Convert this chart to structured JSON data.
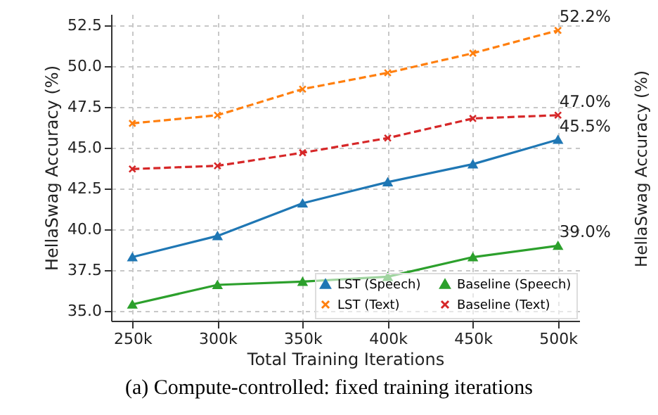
{
  "chart_data": {
    "type": "line",
    "xlabel": "Total Training Iterations",
    "ylabel": "HellaSwag Accuracy (%)",
    "categories": [
      "250k",
      "300k",
      "350k",
      "400k",
      "450k",
      "500k"
    ],
    "series": [
      {
        "name": "LST (Speech)",
        "color": "#1f77b4",
        "marker": "triangle",
        "line_style": "solid",
        "values": [
          38.3,
          39.6,
          41.6,
          42.9,
          44.0,
          45.5
        ],
        "value_labels": [
          null,
          null,
          null,
          null,
          null,
          "45.5%"
        ]
      },
      {
        "name": "LST (Text)",
        "color": "#ff7f0e",
        "marker": "cross",
        "line_style": "dashed",
        "values": [
          46.5,
          47.0,
          48.6,
          49.6,
          50.8,
          52.2
        ],
        "value_labels": [
          null,
          null,
          null,
          null,
          null,
          "52.2%"
        ]
      },
      {
        "name": "Baseline (Speech)",
        "color": "#2ca02c",
        "marker": "triangle",
        "line_style": "solid",
        "values": [
          35.4,
          36.6,
          36.8,
          37.1,
          38.3,
          39.0
        ],
        "value_labels": [
          null,
          null,
          null,
          null,
          null,
          "39.0%"
        ]
      },
      {
        "name": "Baseline (Text)",
        "color": "#d62728",
        "marker": "cross",
        "line_style": "dashed",
        "values": [
          43.7,
          43.9,
          44.7,
          45.6,
          46.8,
          47.0
        ],
        "value_labels": [
          null,
          null,
          null,
          null,
          null,
          "47.0%"
        ]
      }
    ],
    "ylim": [
      34.4,
      53.2
    ],
    "yticks": [
      {
        "value": 35,
        "label": "35.0"
      },
      {
        "value": 37.5,
        "label": "37.5"
      },
      {
        "value": 40,
        "label": "40.0"
      },
      {
        "value": 42.5,
        "label": "42.5"
      },
      {
        "value": 45,
        "label": "45.0"
      },
      {
        "value": 47.5,
        "label": "47.5"
      },
      {
        "value": 50,
        "label": "50.0"
      },
      {
        "value": 52.5,
        "label": "52.5"
      }
    ],
    "grid": true,
    "legend": "bottom right",
    "annotations": [
      "(a) Compute-controlled: fixed training iterations",
      "HellaSwag Accuracy (%)"
    ]
  }
}
